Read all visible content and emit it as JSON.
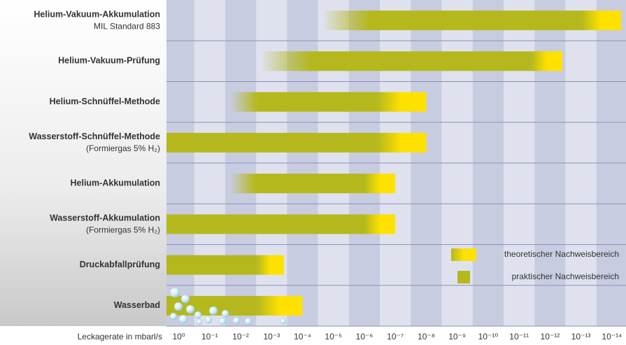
{
  "chart_data": {
    "type": "range",
    "x_label": "Leckagerate in mbarl/s",
    "log_x": true,
    "xlim": [
      2.5,
      3.5e-15
    ],
    "xticks": [
      {
        "value": 1,
        "label": "10⁰"
      },
      {
        "value": 0.1,
        "label": "10⁻¹"
      },
      {
        "value": 0.01,
        "label": "10⁻²"
      },
      {
        "value": 0.001,
        "label": "10⁻³"
      },
      {
        "value": 0.0001,
        "label": "10⁻⁴"
      },
      {
        "value": 1e-05,
        "label": "10⁻⁵"
      },
      {
        "value": 1e-06,
        "label": "10⁻⁶"
      },
      {
        "value": 1e-07,
        "label": "10⁻⁷"
      },
      {
        "value": 1e-08,
        "label": "10⁻⁸"
      },
      {
        "value": 1e-09,
        "label": "10⁻⁹"
      },
      {
        "value": 1e-10,
        "label": "10⁻¹⁰"
      },
      {
        "value": 1e-11,
        "label": "10⁻¹¹"
      },
      {
        "value": 1e-12,
        "label": "10⁻¹²"
      },
      {
        "value": 1e-13,
        "label": "10⁻¹³"
      },
      {
        "value": 1e-14,
        "label": "10⁻¹⁴"
      }
    ],
    "practical_color": "#b4b81c",
    "theoretical_color": "#ffe100",
    "legend": {
      "theoretical": "theoretischer Nachweisbereich",
      "practical": "praktischer Nachweisbereich"
    },
    "rows": [
      {
        "name": "Helium-Vakuum-Akkumulation",
        "note": "MIL Standard 883",
        "start": 2e-05,
        "transition": 1e-13,
        "end": 5e-15
      },
      {
        "name": "Helium-Vakuum-Prüfung",
        "start": 0.002,
        "transition": 4e-12,
        "end": 4e-13
      },
      {
        "name": "Helium-Schnüffel-Methode",
        "start": 0.02,
        "transition": 4e-07,
        "end": 1e-08
      },
      {
        "name": "Wasserstoff-Schnüffel-Methode",
        "note": "(Formiergas 5% H₂)",
        "start": 2.5,
        "transition": 4e-07,
        "end": 1e-08
      },
      {
        "name": "Helium-Akkumulation",
        "start": 0.02,
        "transition": 1e-06,
        "end": 1e-07
      },
      {
        "name": "Wasserstoff-Akkumulation",
        "note": "(Formiergas 5% H₂)",
        "start": 2.5,
        "transition": 1e-06,
        "end": 1e-07
      },
      {
        "name": "Druckabfallprüfung",
        "start": 2.5,
        "transition": 0.003,
        "end": 0.0004
      },
      {
        "name": "Wasserbad",
        "start": 2.5,
        "transition": 0.003,
        "end": 0.0001
      }
    ]
  }
}
